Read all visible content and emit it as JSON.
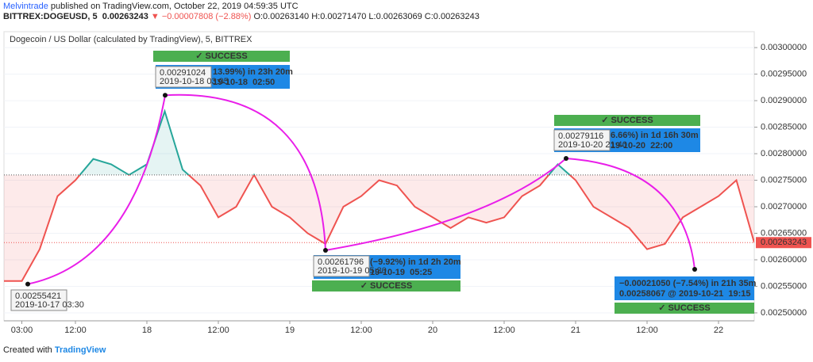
{
  "header": {
    "publisher": "Melvintrade",
    "published": "published on TradingView.com, October 22, 2019 04:59:35 UTC",
    "symbol": "BITTREX:DOGEUSD, 5",
    "change": "▼ −0.00007808 (−2.88%)",
    "open": "O:0.00263140",
    "high": "H:0.00271470",
    "low": "L:0.00263069",
    "close": "C:0.00263243"
  },
  "chart_data": {
    "type": "line",
    "title": "Dogecoin / US Dollar (calculated by TradingView), 5, BITTREX",
    "categories": [
      null,
      "03:00",
      null,
      null,
      "12:00",
      null,
      null,
      null,
      "18",
      null,
      null,
      null,
      "12:00",
      null,
      null,
      null,
      "19",
      null,
      null,
      null,
      "12:00",
      null,
      null,
      null,
      "20",
      null,
      null,
      null,
      "12:00",
      null,
      null,
      null,
      "21",
      null,
      null,
      null,
      "12:00",
      null,
      null,
      null,
      "22",
      null,
      null
    ],
    "values": [
      0.00256,
      0.00256,
      0.00262,
      0.00272,
      0.00275,
      0.00279,
      0.00278,
      0.00276,
      0.00278,
      0.00288,
      0.00277,
      0.00274,
      0.00268,
      0.0027,
      0.00276,
      0.0027,
      0.00268,
      0.00265,
      0.00263,
      0.0027,
      0.00272,
      0.00275,
      0.00274,
      0.0027,
      0.00268,
      0.00266,
      0.00268,
      0.00267,
      0.00268,
      0.00272,
      0.00274,
      0.00278,
      0.00275,
      0.0027,
      0.00268,
      0.00266,
      0.00262,
      0.00263,
      0.00268,
      0.0027,
      0.00272,
      0.00275,
      0.00263243
    ],
    "colors": {
      "up": "#26a69a",
      "down": "#ef5350"
    },
    "baseline": 0.00276,
    "ylim": [
      0.002485,
      0.00303
    ],
    "yticks": [
      {
        "value": 0.0025,
        "label": "0.00250000"
      },
      {
        "value": 0.00255,
        "label": "0.00255000"
      },
      {
        "value": 0.0026,
        "label": "0.00260000"
      },
      {
        "value": 0.00265,
        "label": "0.00265000"
      },
      {
        "value": 0.0027,
        "label": "0.00270000"
      },
      {
        "value": 0.00275,
        "label": "0.00275000"
      },
      {
        "value": 0.0028,
        "label": "0.00280000"
      },
      {
        "value": 0.00285,
        "label": "0.00285000"
      },
      {
        "value": 0.0029,
        "label": "0.00290000"
      },
      {
        "value": 0.00295,
        "label": "0.00295000"
      },
      {
        "value": 0.003,
        "label": "0.00300000"
      }
    ],
    "trades": [
      {
        "price": 0.00255421,
        "time": "2019-10-17 03:30"
      },
      {
        "price": 0.00291024,
        "time": "2019-10-18 03:05"
      },
      {
        "price": 0.00261796,
        "time": "2019-10-19 05:30"
      },
      {
        "price": 0.00279116,
        "time": "2019-10-20 21:40"
      }
    ],
    "signals": [
      {
        "status": "✓ SUCCESS",
        "result": "13.99%) in 23h 20m",
        "detail": "19-10-18  02:50"
      },
      {
        "status": "✓ SUCCESS",
        "result": "(−9.92%) in 1d 2h 20m",
        "detail": "19-10-19  05:25"
      },
      {
        "status": "✓ SUCCESS",
        "result": "6.66%) in 1d 16h 30m",
        "detail": "19-10-20  22:00"
      },
      {
        "status": "✓ SUCCESS",
        "result": "−0.00021050 (−7.54%) in 21h 35m",
        "detail": "0.00258067 @ 2019-10-21  19:15"
      }
    ]
  },
  "footer": {
    "created": "Created with",
    "brand": "TradingView"
  }
}
